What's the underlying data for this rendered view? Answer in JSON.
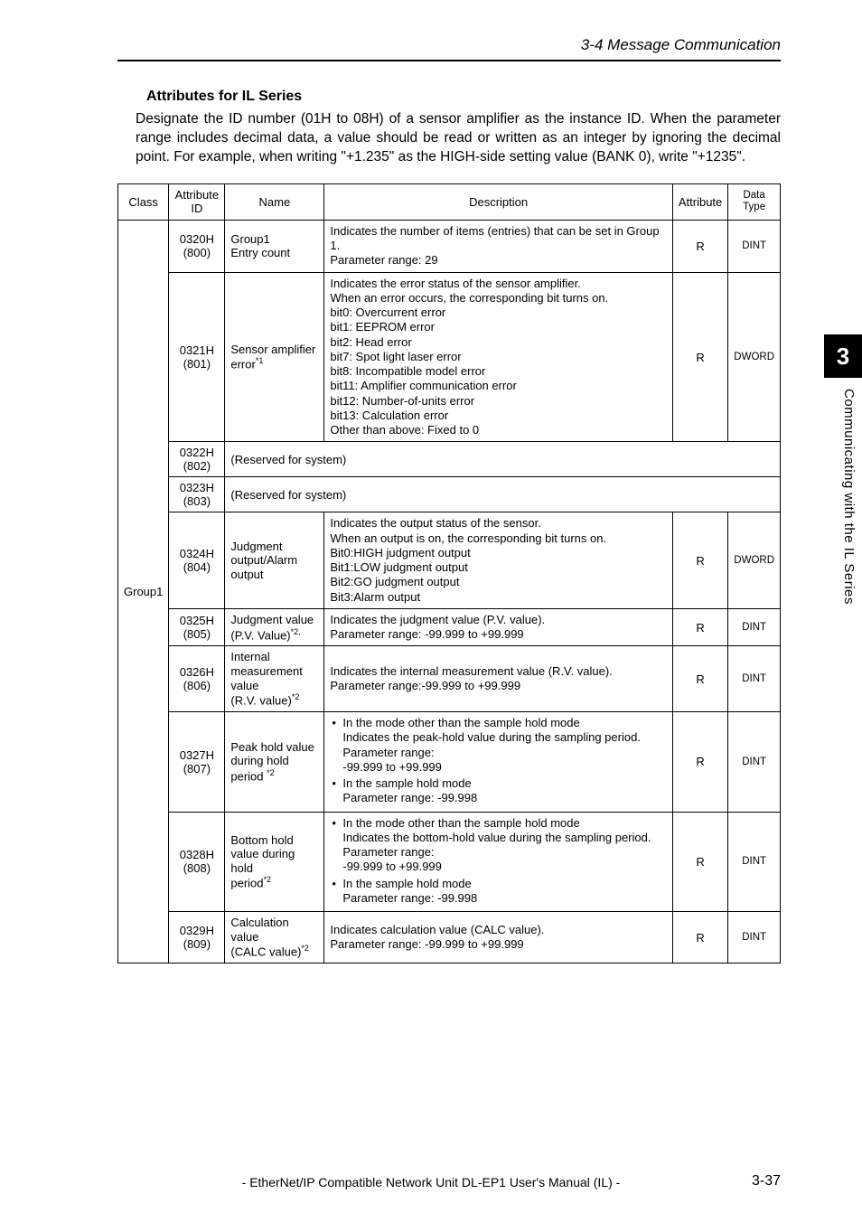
{
  "header": {
    "section_title": "3-4 Message Communication"
  },
  "subtitle": "Attributes for IL Series",
  "intro": "Designate the ID number (01H to 08H) of a sensor amplifier as the instance ID. When the parameter range includes decimal data, a value should be read or written as an integer by ignoring the decimal point. For example, when writing \"+1.235\" as the HIGH-side setting value (BANK 0), write \"+1235\".",
  "table": {
    "headers": {
      "class": "Class",
      "attrid": "Attribute ID",
      "name": "Name",
      "desc": "Description",
      "attr": "Attribute",
      "dtype": "Data Type"
    },
    "class_label": "Group1",
    "rows": [
      {
        "attrid_hex": "0320H",
        "attrid_dec": "(800)",
        "name": "Group1 Entry count",
        "desc": "Indicates the number of items (entries) that can be set in Group 1.\nParameter range: 29",
        "attr": "R",
        "dtype": "DINT"
      },
      {
        "attrid_hex": "0321H",
        "attrid_dec": "(801)",
        "name": "Sensor amplifier error",
        "name_sup": "*1",
        "desc": "Indicates the error status of the sensor amplifier.\nWhen an error occurs, the corresponding bit turns on.\nbit0:  Overcurrent error\nbit1:  EEPROM error\nbit2:  Head error\nbit7:  Spot light laser error\nbit8:  Incompatible model error\nbit11: Amplifier communication error\nbit12: Number-of-units error\nbit13: Calculation error\nOther than above: Fixed to 0",
        "attr": "R",
        "dtype": "DWORD"
      },
      {
        "attrid_hex": "0322H",
        "attrid_dec": "(802)",
        "reserved": "(Reserved for system)"
      },
      {
        "attrid_hex": "0323H",
        "attrid_dec": "(803)",
        "reserved": "(Reserved for system)"
      },
      {
        "attrid_hex": "0324H",
        "attrid_dec": "(804)",
        "name": "Judgment output/Alarm output",
        "desc": "Indicates the output status of the sensor.\nWhen an output is on, the corresponding bit turns on.\nBit0:HIGH judgment output\nBit1:LOW judgment output\nBit2:GO judgment output\nBit3:Alarm output",
        "attr": "R",
        "dtype": "DWORD"
      },
      {
        "attrid_hex": "0325H",
        "attrid_dec": "(805)",
        "name": "Judgment value (P.V. Value)",
        "name_sup": "*2,",
        "desc": "Indicates the judgment value (P.V. value).\nParameter range: -99.999 to +99.999",
        "attr": "R",
        "dtype": "DINT"
      },
      {
        "attrid_hex": "0326H",
        "attrid_dec": "(806)",
        "name": "Internal measurement value (R.V. value)",
        "name_sup": "*2",
        "desc": "Indicates the internal measurement value (R.V. value).\nParameter range:-99.999 to +99.999",
        "attr": "R",
        "dtype": "DINT"
      },
      {
        "attrid_hex": "0327H",
        "attrid_dec": "(807)",
        "name": "Peak hold value during hold period",
        "name_sup": "*2",
        "bullets": [
          "In the mode other than the sample hold mode\nIndicates the peak-hold value during the sampling period.\nParameter range:\n-99.999 to +99.999",
          "In the sample hold mode\nParameter range: -99.998"
        ],
        "attr": "R",
        "dtype": "DINT"
      },
      {
        "attrid_hex": "0328H",
        "attrid_dec": "(808)",
        "name": "Bottom hold value during hold period",
        "name_sup": "*2",
        "bullets": [
          "In the mode other than the sample hold mode\nIndicates the bottom-hold value during the sampling period.\nParameter range:\n-99.999 to +99.999",
          "In the sample hold mode\nParameter range: -99.998"
        ],
        "attr": "R",
        "dtype": "DINT"
      },
      {
        "attrid_hex": "0329H",
        "attrid_dec": "(809)",
        "name": "Calculation value (CALC value)",
        "name_sup": "*2",
        "desc": "Indicates calculation value (CALC value).\nParameter range: -99.999 to +99.999",
        "attr": "R",
        "dtype": "DINT"
      }
    ]
  },
  "side": {
    "chapter": "3",
    "label": "Communicating with the IL Series"
  },
  "footer": {
    "text": "- EtherNet/IP Compatible Network Unit DL-EP1 User's Manual (IL) -",
    "page": "3-37"
  }
}
